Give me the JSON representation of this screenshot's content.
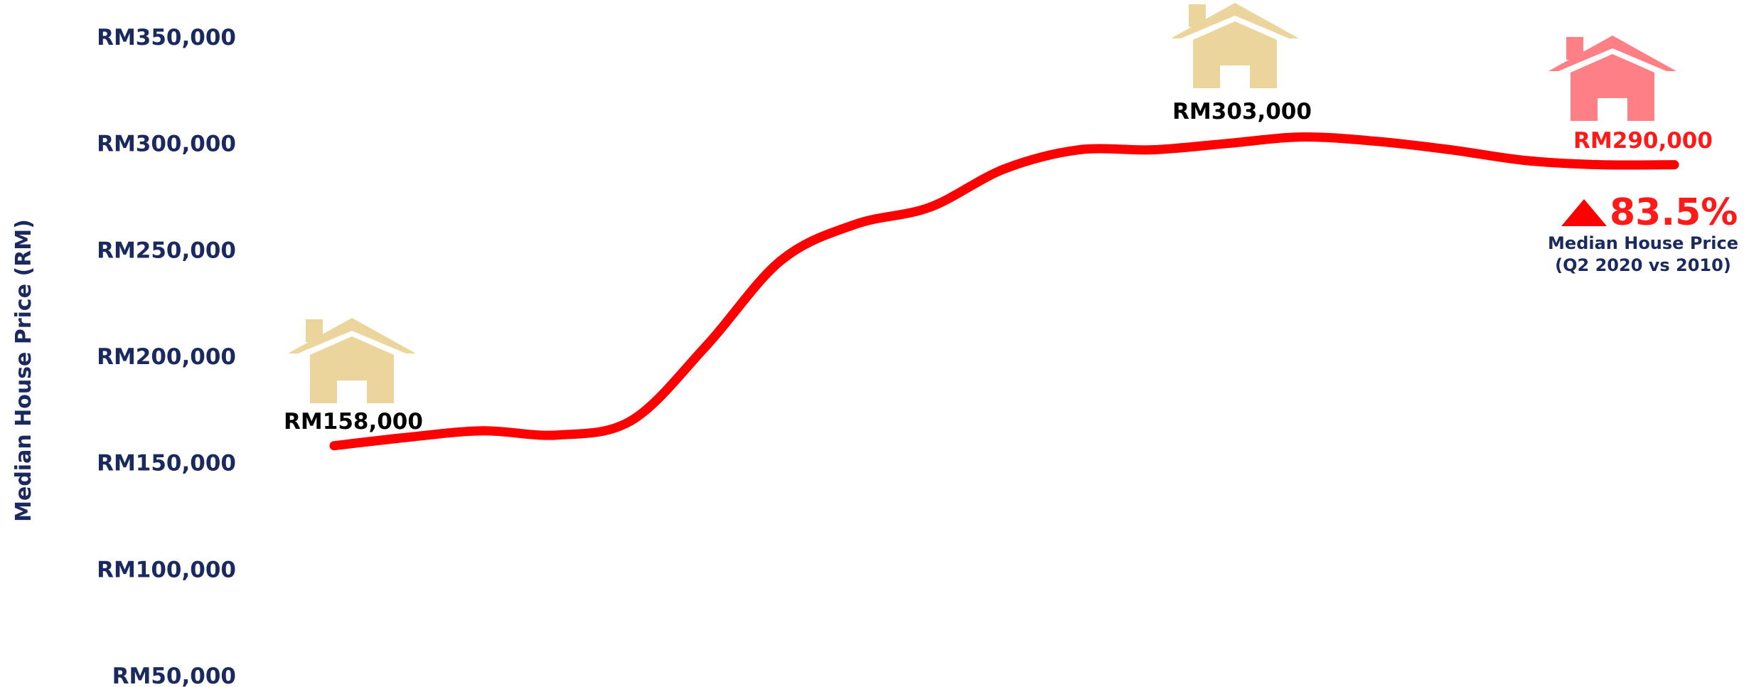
{
  "chart_data": {
    "type": "line",
    "ylabel": "Median House Price (RM)",
    "ylim": [
      50000,
      350000
    ],
    "yticks": [
      350000,
      300000,
      250000,
      200000,
      150000,
      100000,
      50000
    ],
    "ytick_labels": [
      "RM350,000",
      "RM300,000",
      "RM250,000",
      "RM200,000",
      "RM150,000",
      "RM100,000",
      "RM50,000"
    ],
    "grid": false,
    "series": [
      {
        "color": "#ff0000",
        "values": [
          158000,
          162000,
          165000,
          163000,
          170000,
          205000,
          245000,
          262000,
          270000,
          288000,
          297000,
          297000,
          300000,
          303000,
          301000,
          297000,
          292000,
          290000,
          290000
        ]
      }
    ],
    "annotations": [
      {
        "point": 0,
        "label": "RM158,000",
        "icon": "house-icon",
        "color": "#000000",
        "icon_color": "#ecd59c"
      },
      {
        "point": 13,
        "label": "RM303,000",
        "icon": "house-icon",
        "color": "#000000",
        "icon_color": "#ecd59c"
      },
      {
        "point": 18,
        "label": "RM290,000",
        "icon": "house-icon",
        "color": "#ff1a1a",
        "icon_color": "#ff7f86"
      }
    ],
    "change": {
      "arrow_icon": "up-triangle-icon",
      "value": "83.5%",
      "note_line1": "Median House Price",
      "note_line2": "(Q2 2020 vs 2010)"
    }
  }
}
